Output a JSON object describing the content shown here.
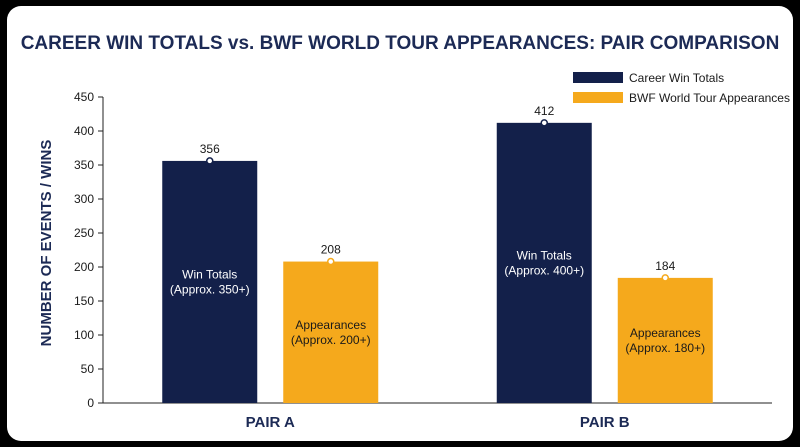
{
  "colors": {
    "series1": "#13204a",
    "series2": "#f5a91c",
    "axis": "#222222"
  },
  "chart_data": {
    "type": "bar",
    "title": "CAREER WIN TOTALS vs. BWF WORLD TOUR APPEARANCES: PAIR COMPARISON",
    "xlabel": "",
    "ylabel": "NUMBER OF EVENTS / WINS",
    "ylim": [
      0,
      450
    ],
    "yticks": [
      "0",
      "50",
      "100",
      "150",
      "200",
      "250",
      "300",
      "350",
      "400",
      "450"
    ],
    "categories": [
      "PAIR A",
      "PAIR B"
    ],
    "legend_position": "top-right",
    "grid": false,
    "series": [
      {
        "name": "Career Win Totals",
        "values": [
          356,
          412
        ],
        "bar_labels": [
          [
            "Win Totals",
            "(Approx. 350+)"
          ],
          [
            "Win Totals",
            "(Approx. 400+)"
          ]
        ]
      },
      {
        "name": "BWF World Tour Appearances",
        "values": [
          208,
          184
        ],
        "bar_labels": [
          [
            "Appearances",
            "(Approx. 200+)"
          ],
          [
            "Appearances",
            "(Approx. 180+)"
          ]
        ]
      }
    ]
  }
}
